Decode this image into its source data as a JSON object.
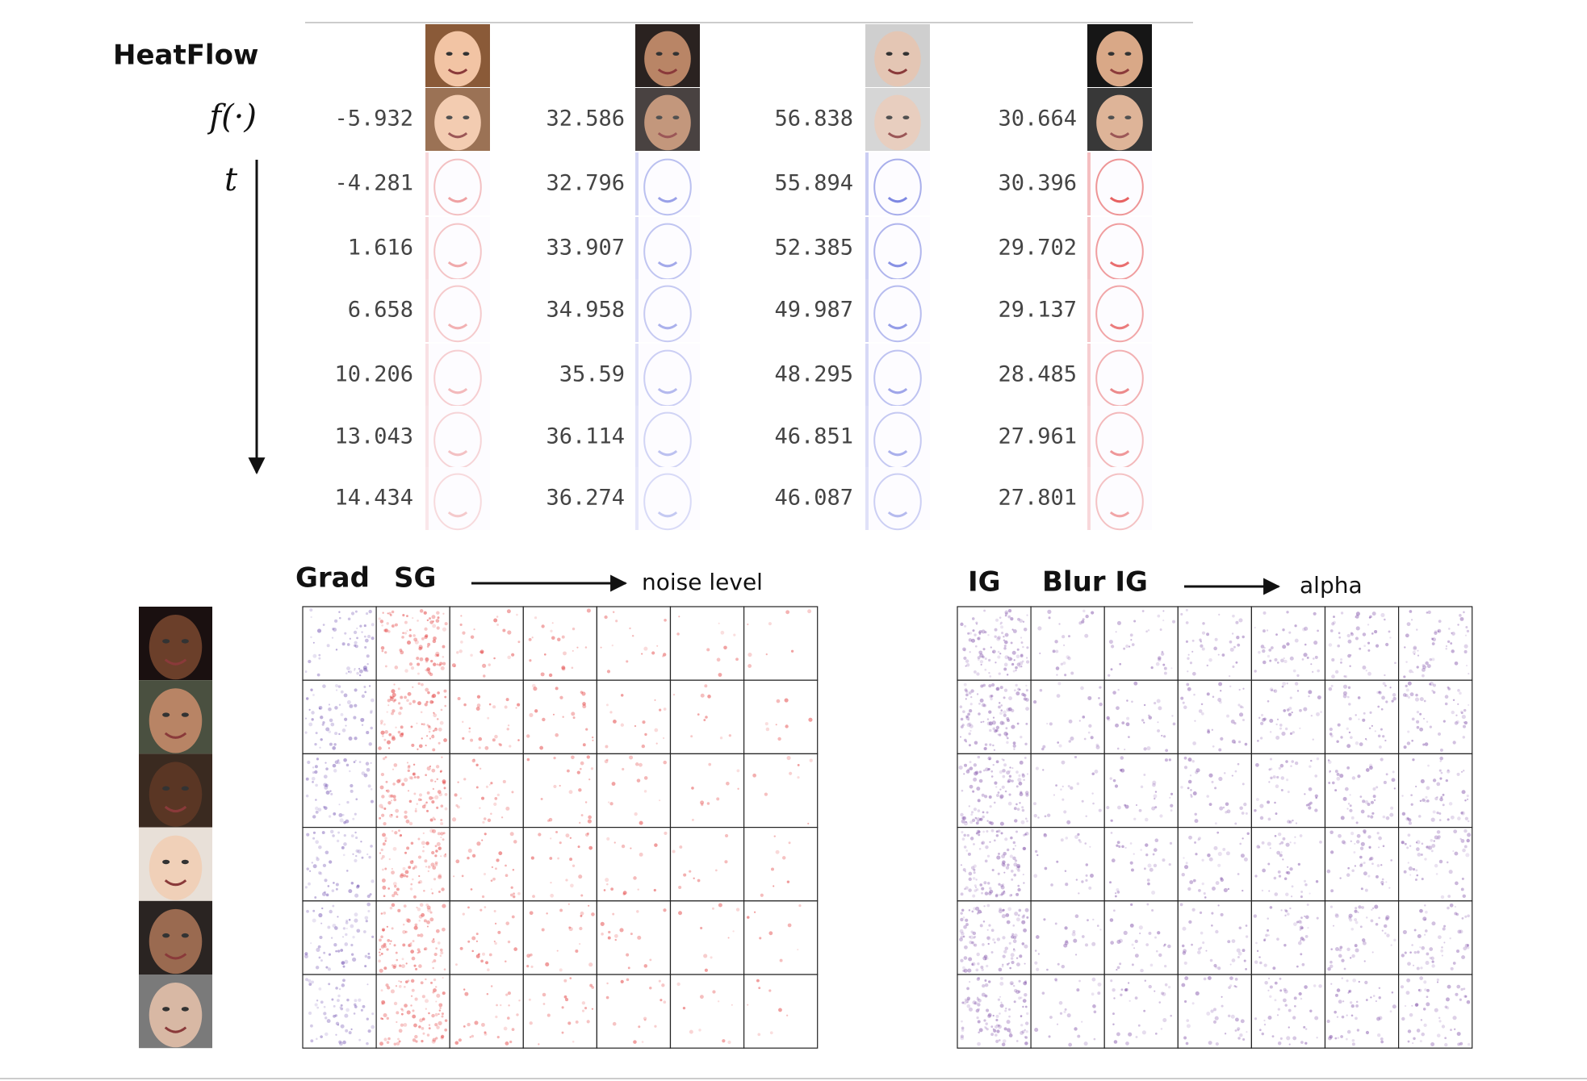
{
  "heatflow": {
    "title": "HeatFlow",
    "f_label": "f(·)",
    "t_label": "t",
    "columns": [
      {
        "values": [
          -5.932,
          -4.281,
          1.616,
          6.658,
          10.206,
          13.043,
          14.434
        ]
      },
      {
        "values": [
          32.586,
          32.796,
          33.907,
          34.958,
          35.59,
          36.114,
          36.274
        ]
      },
      {
        "values": [
          56.838,
          55.894,
          52.385,
          49.987,
          48.295,
          46.851,
          46.087
        ]
      },
      {
        "values": [
          30.664,
          30.396,
          29.702,
          29.137,
          28.485,
          27.961,
          27.801
        ]
      }
    ]
  },
  "baselines": {
    "left": {
      "labels": [
        "Grad",
        "SG"
      ],
      "axis_label": "noise level"
    },
    "right": {
      "labels": [
        "IG",
        "Blur IG"
      ],
      "axis_label": "alpha"
    }
  }
}
